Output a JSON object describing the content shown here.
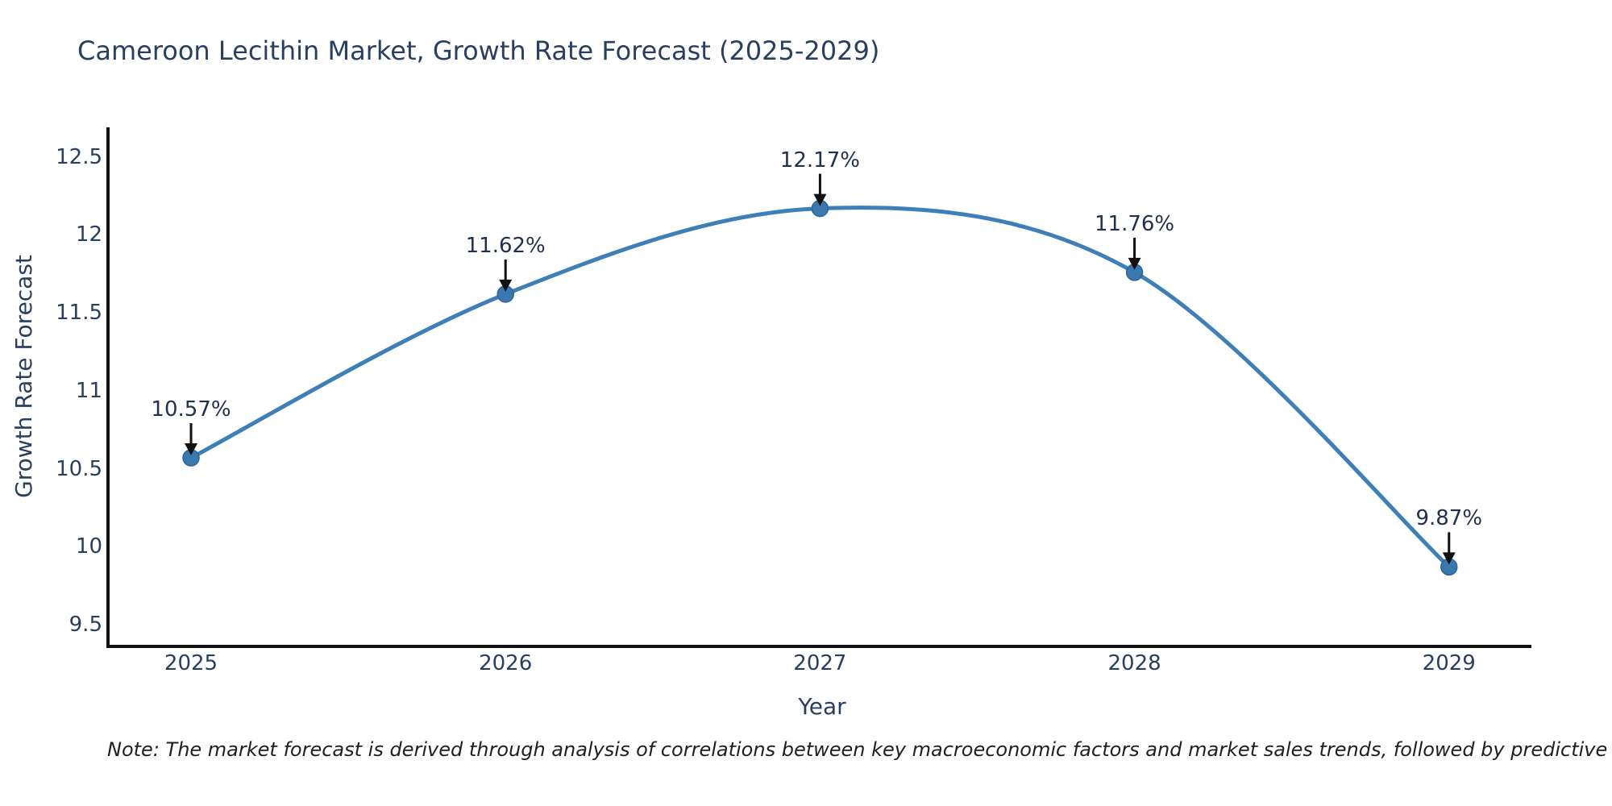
{
  "title": "Cameroon Lecithin Market, Growth Rate Forecast (2025-2029)",
  "note": "Note: The market forecast is derived through analysis of correlations between key macroeconomic factors and market sales trends, followed by predictive modeling to project future sales",
  "chart_data": {
    "type": "line",
    "title": "Cameroon Lecithin Market, Growth Rate Forecast (2025-2029)",
    "xlabel": "Year",
    "ylabel": "Growth Rate Forecast",
    "x": [
      2025,
      2026,
      2027,
      2028,
      2029
    ],
    "values": [
      10.57,
      11.62,
      12.17,
      11.76,
      9.87
    ],
    "point_labels": [
      "10.57%",
      "11.62%",
      "12.17%",
      "11.76%",
      "9.87%"
    ],
    "xticks": [
      "2025",
      "2026",
      "2027",
      "2028",
      "2029"
    ],
    "xtick_values": [
      2025,
      2026,
      2027,
      2028,
      2029
    ],
    "yticks": [
      "9.5",
      "10",
      "10.5",
      "11",
      "11.5",
      "12",
      "12.5"
    ],
    "ytick_values": [
      9.5,
      10,
      10.5,
      11,
      11.5,
      12,
      12.5
    ],
    "xlim": [
      2024.736,
      2029.262
    ],
    "ylim": [
      9.36,
      12.69
    ],
    "grid": false,
    "legend": "none",
    "line_shape": "spline",
    "annotation_arrows": "down-arrow-to-point",
    "colors": {
      "line": "#3f7fb8",
      "marker": "#3a78b0",
      "marker_edge": "#2f6496",
      "axis": "#111111",
      "labels": "#2a3f5f",
      "annotation_text": "#22304f",
      "arrow": "#111111",
      "note_text": "#1f1f1f",
      "background": "#ffffff"
    }
  }
}
